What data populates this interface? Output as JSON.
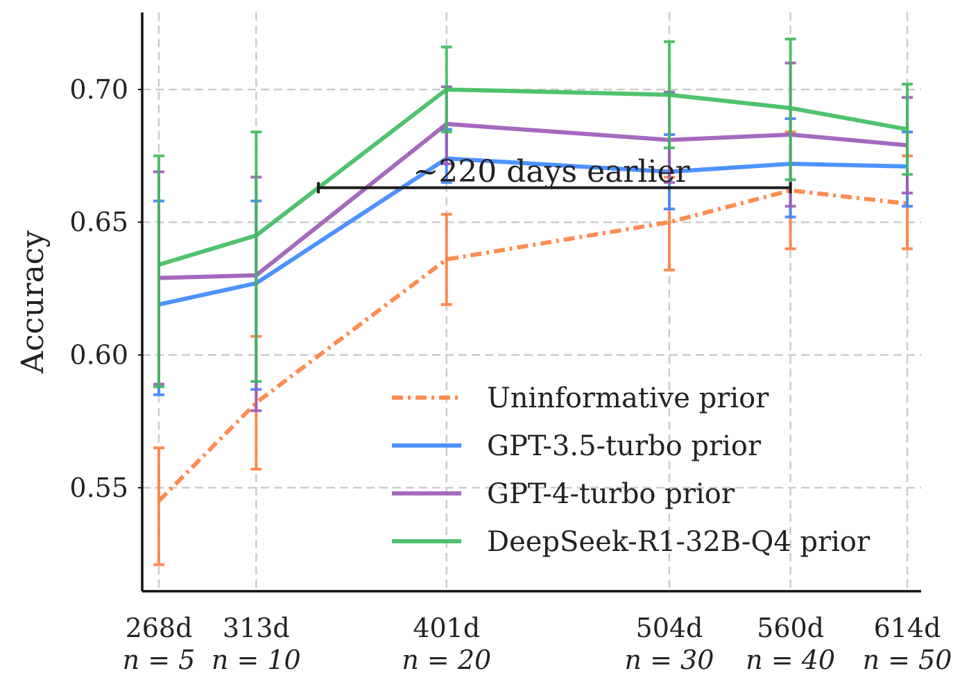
{
  "chart_data": {
    "type": "line",
    "title": "",
    "xlabel": "",
    "ylabel": "Accuracy",
    "x_ticks": [
      {
        "days": "268d",
        "n": "n = 5"
      },
      {
        "days": "313d",
        "n": "n = 10"
      },
      {
        "days": "401d",
        "n": "n = 20"
      },
      {
        "days": "504d",
        "n": "n = 30"
      },
      {
        "days": "560d",
        "n": "n = 40"
      },
      {
        "days": "614d",
        "n": "n = 50"
      }
    ],
    "x": [
      268,
      313,
      401,
      504,
      560,
      614
    ],
    "xlim": [
      260,
      620
    ],
    "ylim": [
      0.511,
      0.729
    ],
    "y_ticks": [
      "0.55",
      "0.60",
      "0.65",
      "0.70"
    ],
    "y_tick_values": [
      0.55,
      0.6,
      0.65,
      0.7
    ],
    "grid": true,
    "legend_position": "lower-right",
    "series": [
      {
        "name": "Uninformative prior",
        "color": "#ff7f3f",
        "style": "dashdot",
        "values": [
          0.545,
          0.582,
          0.636,
          0.65,
          0.662,
          0.657
        ],
        "err_low": [
          0.521,
          0.557,
          0.619,
          0.632,
          0.64,
          0.64
        ],
        "err_high": [
          0.565,
          0.607,
          0.653,
          0.667,
          0.684,
          0.675
        ]
      },
      {
        "name": "GPT-3.5-turbo prior",
        "color": "#3a86ff",
        "style": "solid",
        "values": [
          0.619,
          0.627,
          0.674,
          0.669,
          0.672,
          0.671
        ],
        "err_low": [
          0.585,
          0.587,
          0.665,
          0.655,
          0.652,
          0.656
        ],
        "err_high": [
          0.658,
          0.658,
          0.685,
          0.683,
          0.689,
          0.684
        ]
      },
      {
        "name": "GPT-4-turbo prior",
        "color": "#9b59b6",
        "style": "solid",
        "values": [
          0.629,
          0.63,
          0.687,
          0.681,
          0.683,
          0.679
        ],
        "err_low": [
          0.589,
          0.579,
          0.672,
          0.665,
          0.656,
          0.661
        ],
        "err_high": [
          0.669,
          0.667,
          0.701,
          0.699,
          0.71,
          0.697
        ]
      },
      {
        "name": "DeepSeek-R1-32B-Q4 prior",
        "color": "#3dbb5e",
        "style": "solid",
        "values": [
          0.634,
          0.645,
          0.7,
          0.698,
          0.693,
          0.685
        ],
        "err_low": [
          0.588,
          0.59,
          0.684,
          0.678,
          0.666,
          0.668
        ],
        "err_high": [
          0.675,
          0.684,
          0.716,
          0.718,
          0.719,
          0.702
        ]
      }
    ],
    "annotations": [
      {
        "text": "∼220 days earlier",
        "x_start": 340,
        "x_end": 560,
        "y": 0.663
      }
    ]
  }
}
